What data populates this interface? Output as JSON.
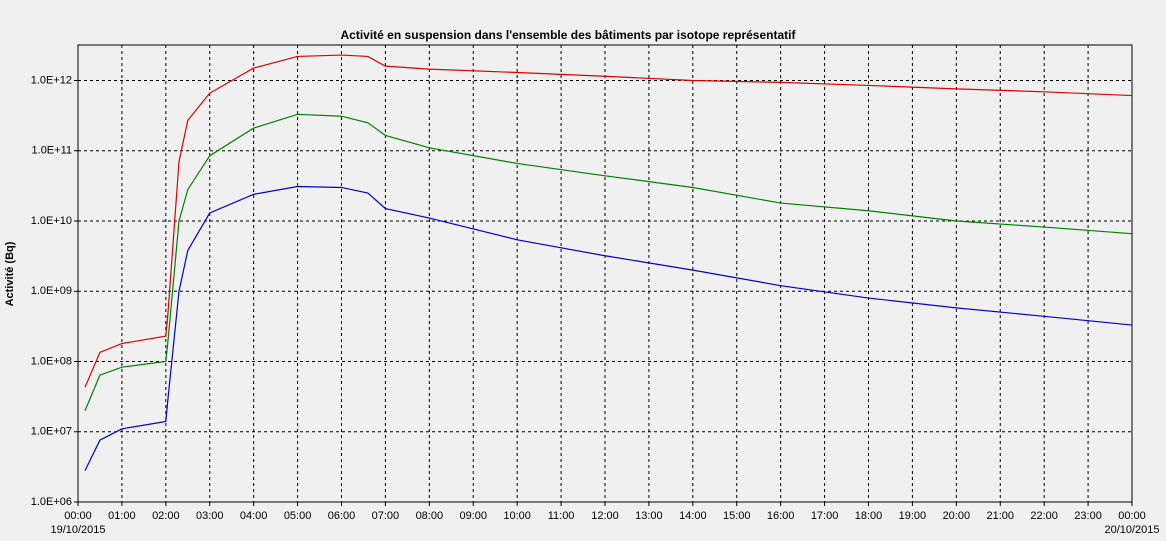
{
  "chart_data": {
    "type": "line",
    "title": "Activité en suspension dans l'ensemble des bâtiments par isotope représentatif",
    "y_label": "Activité (Bq)",
    "x_dates": [
      "19/10/2015",
      "20/10/2015"
    ],
    "x": [
      0.16,
      0.5,
      1,
      2,
      2.05,
      2.3,
      2.5,
      3,
      4,
      5,
      6,
      6.6,
      7,
      8,
      10,
      12,
      14,
      16,
      18,
      20,
      22,
      24
    ],
    "series": [
      {
        "color": "#e00000",
        "values": [
          43000000.0,
          135000000.0,
          180000000.0,
          230000000.0,
          500000000.0,
          70000000000.0,
          270000000000.0,
          660000000000.0,
          1500000000000.0,
          2200000000000.0,
          2300000000000.0,
          2200000000000.0,
          1600000000000.0,
          1450000000000.0,
          1300000000000.0,
          1150000000000.0,
          1000000000000.0,
          940000000000.0,
          850000000000.0,
          760000000000.0,
          690000000000.0,
          610000000000.0
        ]
      },
      {
        "color": "#008000",
        "values": [
          20000000.0,
          64000000.0,
          83000000.0,
          100000000.0,
          200000000.0,
          10000000000.0,
          28000000000.0,
          85000000000.0,
          210000000000.0,
          330000000000.0,
          310000000000.0,
          250000000000.0,
          165000000000.0,
          110000000000.0,
          66000000000.0,
          44000000000.0,
          30000000000.0,
          18000000000.0,
          14000000000.0,
          10000000000.0,
          8200000000.0,
          6600000000.0
        ]
      },
      {
        "color": "#0000d0",
        "values": [
          2800000.0,
          7600000.0,
          11000000.0,
          14000000.0,
          30000000.0,
          1000000000.0,
          3800000000.0,
          13000000000.0,
          24000000000.0,
          31000000000.0,
          30000000000.0,
          25000000000.0,
          15000000000.0,
          11000000000.0,
          5400000000.0,
          3200000000.0,
          2000000000.0,
          1200000000.0,
          800000000.0,
          580000000.0,
          440000000.0,
          330000000.0
        ]
      }
    ],
    "xlim": [
      0,
      24
    ],
    "xticks": [
      {
        "value": 0,
        "label": "00:00"
      },
      {
        "value": 1,
        "label": "01:00"
      },
      {
        "value": 2,
        "label": "02:00"
      },
      {
        "value": 3,
        "label": "03:00"
      },
      {
        "value": 4,
        "label": "04:00"
      },
      {
        "value": 5,
        "label": "05:00"
      },
      {
        "value": 6,
        "label": "06:00"
      },
      {
        "value": 7,
        "label": "07:00"
      },
      {
        "value": 8,
        "label": "08:00"
      },
      {
        "value": 9,
        "label": "09:00"
      },
      {
        "value": 10,
        "label": "10:00"
      },
      {
        "value": 11,
        "label": "11:00"
      },
      {
        "value": 12,
        "label": "12:00"
      },
      {
        "value": 13,
        "label": "13:00"
      },
      {
        "value": 14,
        "label": "14:00"
      },
      {
        "value": 15,
        "label": "15:00"
      },
      {
        "value": 16,
        "label": "16:00"
      },
      {
        "value": 17,
        "label": "17:00"
      },
      {
        "value": 18,
        "label": "18:00"
      },
      {
        "value": 19,
        "label": "19:00"
      },
      {
        "value": 20,
        "label": "20:00"
      },
      {
        "value": 21,
        "label": "21:00"
      },
      {
        "value": 22,
        "label": "22:00"
      },
      {
        "value": 23,
        "label": "23:00"
      },
      {
        "value": 24,
        "label": "00:00"
      }
    ],
    "ylim": [
      1000000,
      3200000000000
    ],
    "yticks": [
      {
        "value": 1000000,
        "label": "1.0E+06"
      },
      {
        "value": 10000000,
        "label": "1.0E+07"
      },
      {
        "value": 100000000,
        "label": "1.0E+08"
      },
      {
        "value": 1000000000,
        "label": "1.0E+09"
      },
      {
        "value": 10000000000,
        "label": "1.0E+10"
      },
      {
        "value": 100000000000,
        "label": "1.0E+11"
      },
      {
        "value": 1000000000000,
        "label": "1.0E+12"
      }
    ],
    "log_y": true,
    "grid": true
  }
}
